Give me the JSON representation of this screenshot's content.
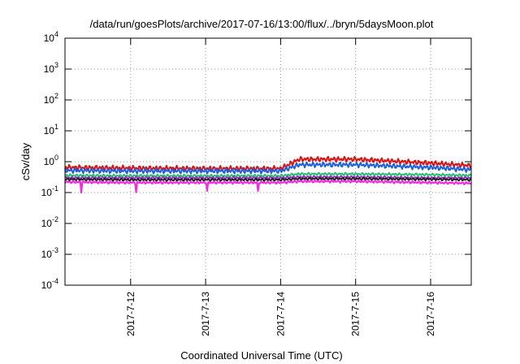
{
  "chart_data": {
    "type": "line",
    "title": "/data/run/goesPlots/archive/2017-07-16/13:00/flux/../bryn/5daysMoon.plot",
    "xlabel": "Coordinated Universal Time (UTC)",
    "ylabel": "cSv/day",
    "yscale": "log",
    "ylim": [
      0.0001,
      10000
    ],
    "xlim": [
      "2017-07-11T03:00",
      "2017-07-16T13:00"
    ],
    "grid": true,
    "legend": "none",
    "x_ticks": [
      "2017-7-12",
      "2017-7-13",
      "2017-7-14",
      "2017-7-15",
      "2017-7-16"
    ],
    "y_ticks": [
      {
        "base": "10",
        "exp": "-4"
      },
      {
        "base": "10",
        "exp": "-3"
      },
      {
        "base": "10",
        "exp": "-2"
      },
      {
        "base": "10",
        "exp": "-1"
      },
      {
        "base": "10",
        "exp": "0"
      },
      {
        "base": "10",
        "exp": "1"
      },
      {
        "base": "10",
        "exp": "2"
      },
      {
        "base": "10",
        "exp": "3"
      },
      {
        "base": "10",
        "exp": "4"
      }
    ],
    "series": [
      {
        "color": "#e01010",
        "x": [
          "2017-07-11T03:00",
          "2017-07-12T00:00",
          "2017-07-13T00:00",
          "2017-07-14T00:00",
          "2017-07-14T06:00",
          "2017-07-15T00:00",
          "2017-07-16T00:00",
          "2017-07-16T13:00"
        ],
        "y": [
          0.65,
          0.62,
          0.6,
          0.6,
          1.2,
          1.2,
          0.9,
          0.75
        ]
      },
      {
        "color": "#1a5fe8",
        "x": [
          "2017-07-11T03:00",
          "2017-07-12T00:00",
          "2017-07-13T00:00",
          "2017-07-14T00:00",
          "2017-07-14T06:00",
          "2017-07-15T00:00",
          "2017-07-16T00:00",
          "2017-07-16T13:00"
        ],
        "y": [
          0.52,
          0.5,
          0.5,
          0.5,
          0.8,
          0.8,
          0.65,
          0.55
        ]
      },
      {
        "color": "#22c070",
        "x": [
          "2017-07-11T03:00",
          "2017-07-12T00:00",
          "2017-07-13T00:00",
          "2017-07-14T00:00",
          "2017-07-14T06:00",
          "2017-07-15T00:00",
          "2017-07-16T00:00",
          "2017-07-16T13:00"
        ],
        "y": [
          0.36,
          0.35,
          0.35,
          0.35,
          0.4,
          0.4,
          0.38,
          0.36
        ]
      },
      {
        "color": "#9b30c0",
        "x": [
          "2017-07-11T03:00",
          "2017-07-12T00:00",
          "2017-07-13T00:00",
          "2017-07-14T00:00",
          "2017-07-14T06:00",
          "2017-07-15T00:00",
          "2017-07-16T00:00",
          "2017-07-16T13:00"
        ],
        "y": [
          0.3,
          0.3,
          0.3,
          0.3,
          0.32,
          0.32,
          0.3,
          0.3
        ]
      },
      {
        "color": "#222222",
        "x": [
          "2017-07-11T03:00",
          "2017-07-12T00:00",
          "2017-07-13T00:00",
          "2017-07-14T00:00",
          "2017-07-14T06:00",
          "2017-07-15T00:00",
          "2017-07-16T00:00",
          "2017-07-16T13:00"
        ],
        "y": [
          0.27,
          0.26,
          0.26,
          0.26,
          0.28,
          0.28,
          0.27,
          0.26
        ]
      },
      {
        "color": "#ff20e8",
        "x": [
          "2017-07-11T03:00",
          "2017-07-12T00:00",
          "2017-07-13T00:00",
          "2017-07-14T00:00",
          "2017-07-14T06:00",
          "2017-07-15T00:00",
          "2017-07-16T00:00",
          "2017-07-16T13:00"
        ],
        "y": [
          0.22,
          0.21,
          0.21,
          0.21,
          0.23,
          0.23,
          0.21,
          0.2
        ]
      }
    ]
  }
}
